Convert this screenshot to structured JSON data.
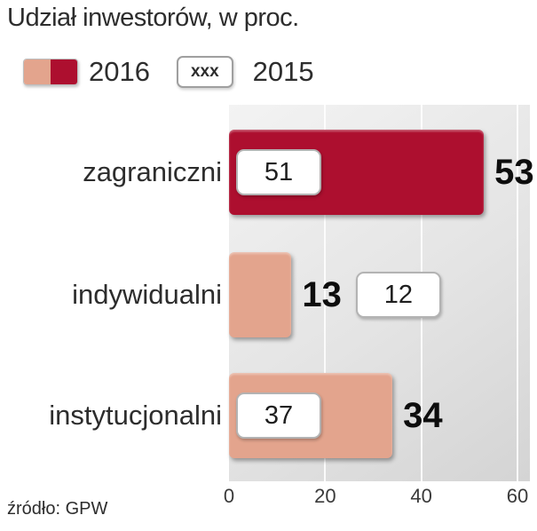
{
  "title": "Udział inwestorów, w proc.",
  "source": "źródło: GPW",
  "legend": {
    "series_2016": "2016",
    "series_2015": "2015",
    "box_2015_marker": "xxx"
  },
  "colors": {
    "red_2016": "#ad0f2f",
    "salmon_2016": "#e3a48d",
    "panel_light": "#f3f3f3",
    "panel_dark": "#d4d4d4",
    "box_border": "#b3b3b3"
  },
  "chart_data": {
    "type": "bar",
    "orientation": "horizontal",
    "title": "Udział inwestorów, w proc.",
    "categories": [
      "zagraniczni",
      "indywidualni",
      "instytucjonalni"
    ],
    "series": [
      {
        "name": "2016",
        "values": [
          53,
          13,
          34
        ]
      },
      {
        "name": "2015",
        "values": [
          51,
          12,
          37
        ]
      }
    ],
    "bar_colors_2016": [
      "#ad0f2f",
      "#e3a48d",
      "#e3a48d"
    ],
    "xlim": [
      0,
      60
    ],
    "xticks": [
      0,
      20,
      40,
      60
    ],
    "xlabel": "",
    "ylabel": "",
    "grid": true,
    "legend_position": "top-left"
  }
}
